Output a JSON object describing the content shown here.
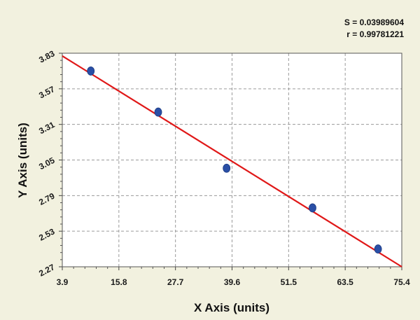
{
  "chart_data": {
    "type": "scatter",
    "title": "",
    "xlabel": "X Axis (units)",
    "ylabel": "Y Axis (units)",
    "xlim": [
      3.9,
      75.4
    ],
    "ylim": [
      2.27,
      3.83
    ],
    "x_ticks": [
      "3.9",
      "15.8",
      "27.7",
      "39.6",
      "51.5",
      "63.5",
      "75.4"
    ],
    "y_ticks": [
      "2.27",
      "2.53",
      "2.79",
      "3.05",
      "3.31",
      "3.57",
      "3.83"
    ],
    "grid": true,
    "points": [
      {
        "x": 9.9,
        "y": 3.7
      },
      {
        "x": 24.1,
        "y": 3.4
      },
      {
        "x": 38.5,
        "y": 2.99
      },
      {
        "x": 56.6,
        "y": 2.7
      },
      {
        "x": 70.4,
        "y": 2.4
      }
    ],
    "fit_line": {
      "x": [
        3.9,
        75.4
      ],
      "y": [
        3.81,
        2.27
      ],
      "color": "#e01818"
    },
    "point_color": "#2a4fa6",
    "stats": {
      "s_label": "S = 0.03989604",
      "r_label": "r = 0.99781221"
    }
  }
}
